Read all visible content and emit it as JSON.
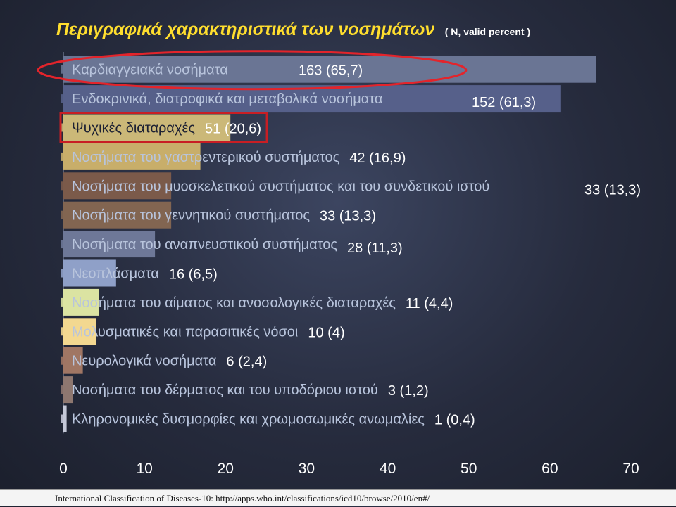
{
  "title": {
    "main": "Περιγραφικά χαρακτηριστικά των νοσημάτων",
    "sub": "( N, valid percent )"
  },
  "footer": "International Classification of Diseases-10: http://apps.who.int/classifications/icd10/browse/2010/en#/",
  "colors": {
    "title": "#ffde2e",
    "label_text": "#b8c4dc",
    "label_text_dark": "#1c2033",
    "value_text": "#ffffff",
    "highlight_ellipse": "#e3242b",
    "highlight_rect": "#c81e24"
  },
  "chart_data": {
    "type": "bar",
    "orientation": "horizontal",
    "xlim": [
      0,
      70
    ],
    "xticks": [
      "0",
      "10",
      "20",
      "30",
      "40",
      "50",
      "60",
      "70"
    ],
    "grid": false,
    "legend": "none",
    "categories": [
      {
        "label": "Καρδιαγγειακά νοσήματα",
        "value": 65.7,
        "value_label": "163 (65,7)",
        "color": "#6a7594"
      },
      {
        "label": "Ενδοκρινικά, διατροφικά και μεταβολικά νοσήματα",
        "value": 61.3,
        "value_label": "152 (61,3)",
        "color": "#56608a"
      },
      {
        "label": "Ψυχικές διαταραχές",
        "value": 20.6,
        "value_label": "51 (20,6)",
        "color": "#cbb878"
      },
      {
        "label": "Νοσήματα του γαστρεντερικού συστήματος",
        "value": 16.9,
        "value_label": "42 (16,9)",
        "color": "#c8ae6a"
      },
      {
        "label": "Νοσήματα του μυοσκελετικού συστήματος και του συνδετικού ιστού",
        "value": 13.3,
        "value_label": "33 (13,3)",
        "color": "#7b5a4a"
      },
      {
        "label": "Νοσήματα του γεννητικού συστήματος",
        "value": 13.3,
        "value_label": "33 (13,3)",
        "color": "#826551"
      },
      {
        "label": "Νοσήματα του αναπνευστικού συστήματος",
        "value": 11.3,
        "value_label": "28 (11,3)",
        "color": "#6e7898"
      },
      {
        "label": "Νεοπλάσματα",
        "value": 6.5,
        "value_label": "16 (6,5)",
        "color": "#8fa0c8"
      },
      {
        "label": "Νοσήματα του αίματος και ανοσολογικές διαταραχές",
        "value": 4.4,
        "value_label": "11 (4,4)",
        "color": "#dbe3a2"
      },
      {
        "label": "Μολυσματικές και παρασιτικές νόσοι",
        "value": 4.0,
        "value_label": "10 (4)",
        "color": "#f3d890"
      },
      {
        "label": "Νευρολογικά νοσήματα",
        "value": 2.4,
        "value_label": "6 (2,4)",
        "color": "#a07664"
      },
      {
        "label": "Νοσήματα του δέρματος και του υποδόριου ιστού",
        "value": 1.2,
        "value_label": "3 (1,2)",
        "color": "#8e7770"
      },
      {
        "label": "Κληρονομικές δυσμορφίες και χρωμοσωμικές ανωμαλίες",
        "value": 0.4,
        "value_label": "1 (0,4)",
        "color": "#c4c8d8"
      }
    ]
  }
}
